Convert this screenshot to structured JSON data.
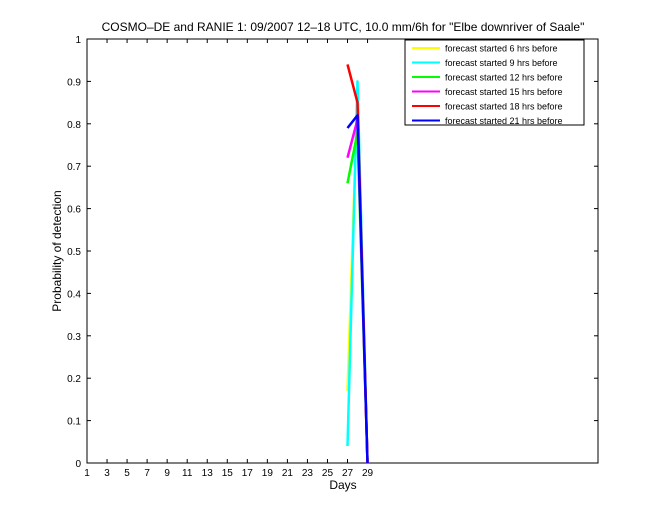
{
  "chart_data": {
    "type": "line",
    "title": "COSMO–DE and RANIE 1: 09/2007 12–18 UTC, 10.0 mm/6h for \"Elbe downriver of Saale\"",
    "xlabel": "Days",
    "ylabel": "Probability of detection",
    "xlim": [
      1,
      52
    ],
    "ylim": [
      0,
      1
    ],
    "x_ticks": [
      1,
      3,
      5,
      7,
      9,
      11,
      13,
      15,
      17,
      19,
      21,
      23,
      25,
      27,
      29
    ],
    "y_ticks": [
      0,
      0.1,
      0.2,
      0.3,
      0.4,
      0.5,
      0.6,
      0.7,
      0.8,
      0.9,
      1
    ],
    "y_tick_labels": [
      "0",
      "0.1",
      "0.2",
      "0.3",
      "0.4",
      "0.5",
      "0.6",
      "0.7",
      "0.8",
      "0.9",
      "1"
    ],
    "legend_position": "top-right",
    "grid": false,
    "series": [
      {
        "name": "forecast started 6 hrs before",
        "color": "#ffff00",
        "x": [
          27,
          28,
          29
        ],
        "y": [
          0.17,
          0.87,
          0.0
        ]
      },
      {
        "name": "forecast started 9 hrs before",
        "color": "#00ffff",
        "x": [
          27,
          28,
          29
        ],
        "y": [
          0.04,
          0.9,
          0.0
        ]
      },
      {
        "name": "forecast started 12 hrs before",
        "color": "#00ff00",
        "x": [
          27,
          28,
          29
        ],
        "y": [
          0.66,
          0.78,
          0.0
        ]
      },
      {
        "name": "forecast started 15 hrs before",
        "color": "#ff00ff",
        "x": [
          27,
          28,
          29
        ],
        "y": [
          0.72,
          0.81,
          0.0
        ]
      },
      {
        "name": "forecast started 18 hrs before",
        "color": "#ff0000",
        "x": [
          27,
          28,
          29
        ],
        "y": [
          0.94,
          0.85,
          0.0
        ]
      },
      {
        "name": "forecast started 21 hrs before",
        "color": "#0000ff",
        "x": [
          27,
          28,
          29
        ],
        "y": [
          0.79,
          0.82,
          0.0
        ]
      }
    ]
  }
}
